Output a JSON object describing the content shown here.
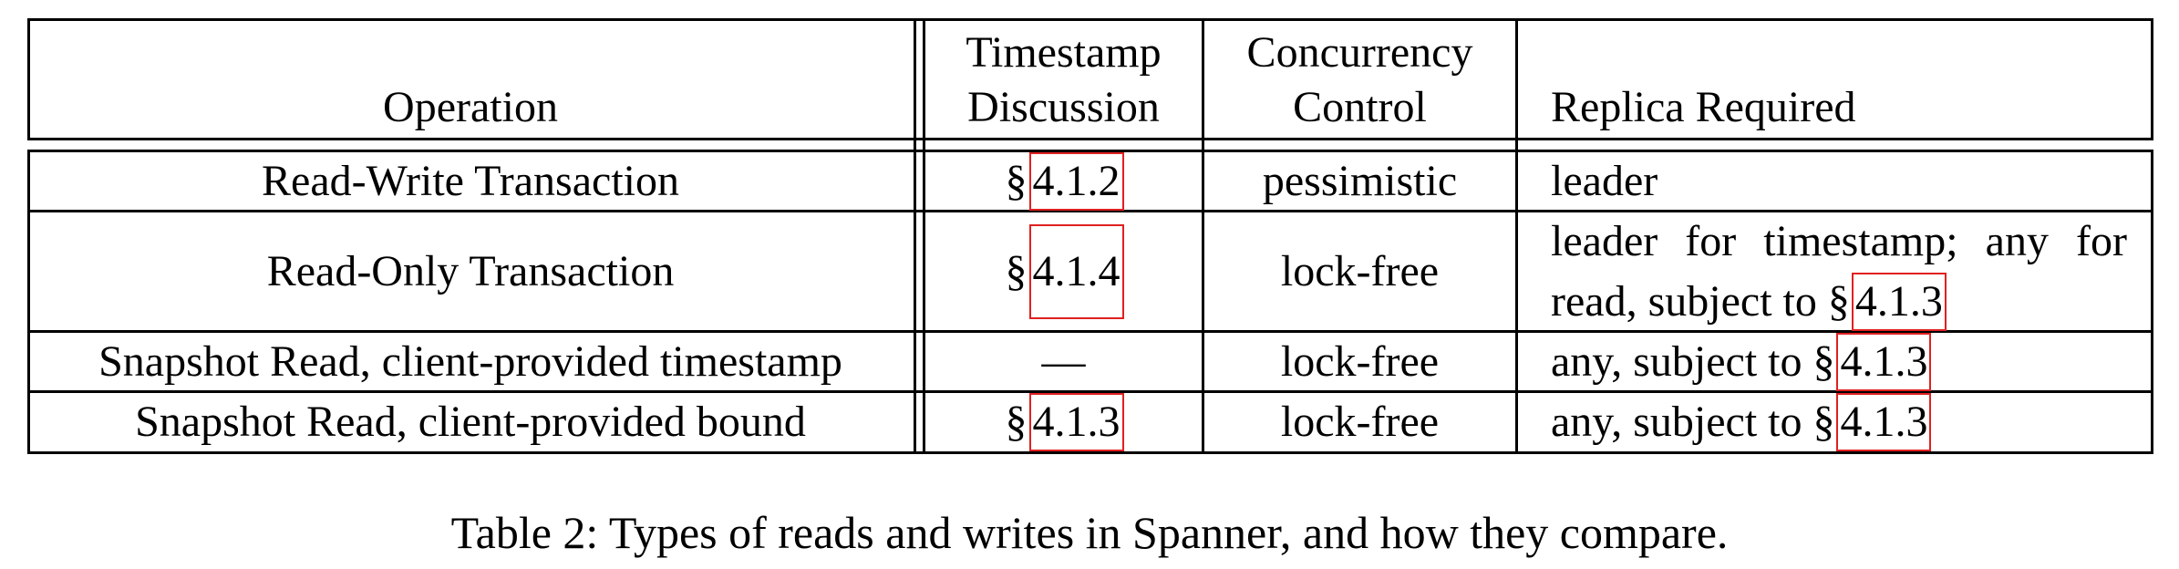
{
  "table": {
    "headers": {
      "operation": [
        "Operation"
      ],
      "timestamp": [
        "Timestamp",
        "Discussion"
      ],
      "concurrency": [
        "Concurrency",
        "Control"
      ],
      "replica": [
        "Replica Required"
      ]
    },
    "section_mark": "§",
    "rows": [
      {
        "operation": "Read-Write Transaction",
        "timestamp_ref": "4.1.2",
        "concurrency": "pessimistic",
        "replica": "leader"
      },
      {
        "operation": "Read-Only Transaction",
        "timestamp_ref": "4.1.4",
        "concurrency": "lock-free",
        "replica_line1_words": [
          "leader",
          "for",
          "timestamp;",
          "any",
          "for"
        ],
        "replica_line2_prefix": "read, subject to",
        "replica_ref": "4.1.3"
      },
      {
        "operation": "Snapshot Read, client-provided timestamp",
        "timestamp_dash": "—",
        "concurrency": "lock-free",
        "replica_prefix": "any, subject to",
        "replica_ref": "4.1.3"
      },
      {
        "operation": "Snapshot Read, client-provided bound",
        "timestamp_ref": "4.1.3",
        "concurrency": "lock-free",
        "replica_prefix": "any, subject to",
        "replica_ref": "4.1.3"
      }
    ]
  },
  "caption": "Table 2: Types of reads and writes in Spanner, and how they compare."
}
